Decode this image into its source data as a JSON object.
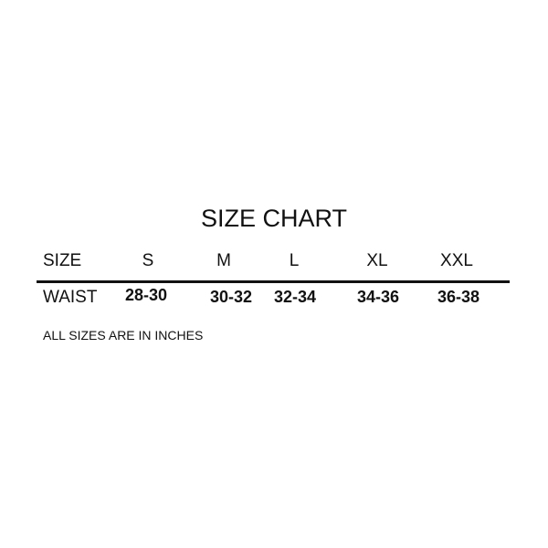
{
  "title": "SIZE CHART",
  "header": {
    "label": "SIZE",
    "sizes": [
      "S",
      "M",
      "L",
      "XL",
      "XXL"
    ]
  },
  "row": {
    "label": "WAIST",
    "values": [
      "28-30",
      "30-32",
      "32-34",
      "34-36",
      "36-38"
    ]
  },
  "note": "ALL SIZES ARE IN INCHES"
}
